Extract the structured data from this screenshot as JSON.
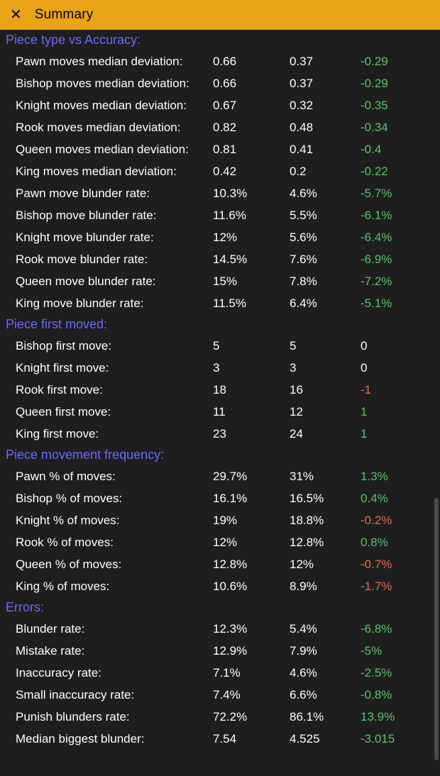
{
  "header": {
    "close_glyph": "✕",
    "title": "Summary"
  },
  "colors": {
    "pos": "#5cc26a",
    "neg": "#e46a4a",
    "neutral": "#ffffff",
    "section": "#6a6afc",
    "titlebar_bg": "#e8a317",
    "body_bg": "#1e1e1e"
  },
  "sections": [
    {
      "title": "Piece type vs Accuracy:",
      "rows": [
        {
          "label": "Pawn moves median deviation:",
          "a": "0.66",
          "b": "0.37",
          "d": "-0.29",
          "dc": "pos"
        },
        {
          "label": "Bishop moves median deviation:",
          "a": "0.66",
          "b": "0.37",
          "d": "-0.29",
          "dc": "pos"
        },
        {
          "label": "Knight moves median deviation:",
          "a": "0.67",
          "b": "0.32",
          "d": "-0.35",
          "dc": "pos"
        },
        {
          "label": "Rook moves median deviation:",
          "a": "0.82",
          "b": "0.48",
          "d": "-0.34",
          "dc": "pos"
        },
        {
          "label": "Queen moves median deviation:",
          "a": "0.81",
          "b": "0.41",
          "d": "-0.4",
          "dc": "pos"
        },
        {
          "label": "King moves median deviation:",
          "a": "0.42",
          "b": "0.2",
          "d": "-0.22",
          "dc": "pos"
        },
        {
          "label": "Pawn move blunder rate:",
          "a": "10.3%",
          "b": "4.6%",
          "d": "-5.7%",
          "dc": "pos"
        },
        {
          "label": "Bishop move blunder rate:",
          "a": "11.6%",
          "b": "5.5%",
          "d": "-6.1%",
          "dc": "pos"
        },
        {
          "label": "Knight move blunder rate:",
          "a": "12%",
          "b": "5.6%",
          "d": "-6.4%",
          "dc": "pos"
        },
        {
          "label": "Rook move blunder rate:",
          "a": "14.5%",
          "b": "7.6%",
          "d": "-6.9%",
          "dc": "pos"
        },
        {
          "label": "Queen move blunder rate:",
          "a": "15%",
          "b": "7.8%",
          "d": "-7.2%",
          "dc": "pos"
        },
        {
          "label": "King move blunder rate:",
          "a": "11.5%",
          "b": "6.4%",
          "d": "-5.1%",
          "dc": "pos"
        }
      ]
    },
    {
      "title": "Piece first moved:",
      "rows": [
        {
          "label": "Bishop first move:",
          "a": "5",
          "b": "5",
          "d": "0",
          "dc": "neutral"
        },
        {
          "label": "Knight first move:",
          "a": "3",
          "b": "3",
          "d": "0",
          "dc": "neutral"
        },
        {
          "label": "Rook first move:",
          "a": "18",
          "b": "16",
          "d": "-1",
          "dc": "neg"
        },
        {
          "label": "Queen first move:",
          "a": "11",
          "b": "12",
          "d": "1",
          "dc": "pos"
        },
        {
          "label": "King first move:",
          "a": "23",
          "b": "24",
          "d": "1",
          "dc": "pos"
        }
      ]
    },
    {
      "title": "Piece movement frequency:",
      "rows": [
        {
          "label": "Pawn % of moves:",
          "a": "29.7%",
          "b": "31%",
          "d": "1.3%",
          "dc": "pos"
        },
        {
          "label": "Bishop % of moves:",
          "a": "16.1%",
          "b": "16.5%",
          "d": "0.4%",
          "dc": "pos"
        },
        {
          "label": "Knight % of moves:",
          "a": "19%",
          "b": "18.8%",
          "d": "-0.2%",
          "dc": "neg"
        },
        {
          "label": "Rook % of moves:",
          "a": "12%",
          "b": "12.8%",
          "d": "0.8%",
          "dc": "pos"
        },
        {
          "label": "Queen % of moves:",
          "a": "12.8%",
          "b": "12%",
          "d": "-0.7%",
          "dc": "neg"
        },
        {
          "label": "King % of moves:",
          "a": "10.6%",
          "b": "8.9%",
          "d": "-1.7%",
          "dc": "neg"
        }
      ]
    },
    {
      "title": "Errors:",
      "rows": [
        {
          "label": "Blunder rate:",
          "a": "12.3%",
          "b": "5.4%",
          "d": "-6.8%",
          "dc": "pos"
        },
        {
          "label": "Mistake rate:",
          "a": "12.9%",
          "b": "7.9%",
          "d": "-5%",
          "dc": "pos"
        },
        {
          "label": "Inaccuracy rate:",
          "a": "7.1%",
          "b": "4.6%",
          "d": "-2.5%",
          "dc": "pos"
        },
        {
          "label": "Small inaccuracy rate:",
          "a": "7.4%",
          "b": "6.6%",
          "d": "-0.8%",
          "dc": "pos"
        },
        {
          "label": "Punish blunders rate:",
          "a": "72.2%",
          "b": "86.1%",
          "d": "13.9%",
          "dc": "pos"
        },
        {
          "label": "Median biggest blunder:",
          "a": "7.54",
          "b": "4.525",
          "d": "-3.015",
          "dc": "pos"
        }
      ]
    }
  ]
}
